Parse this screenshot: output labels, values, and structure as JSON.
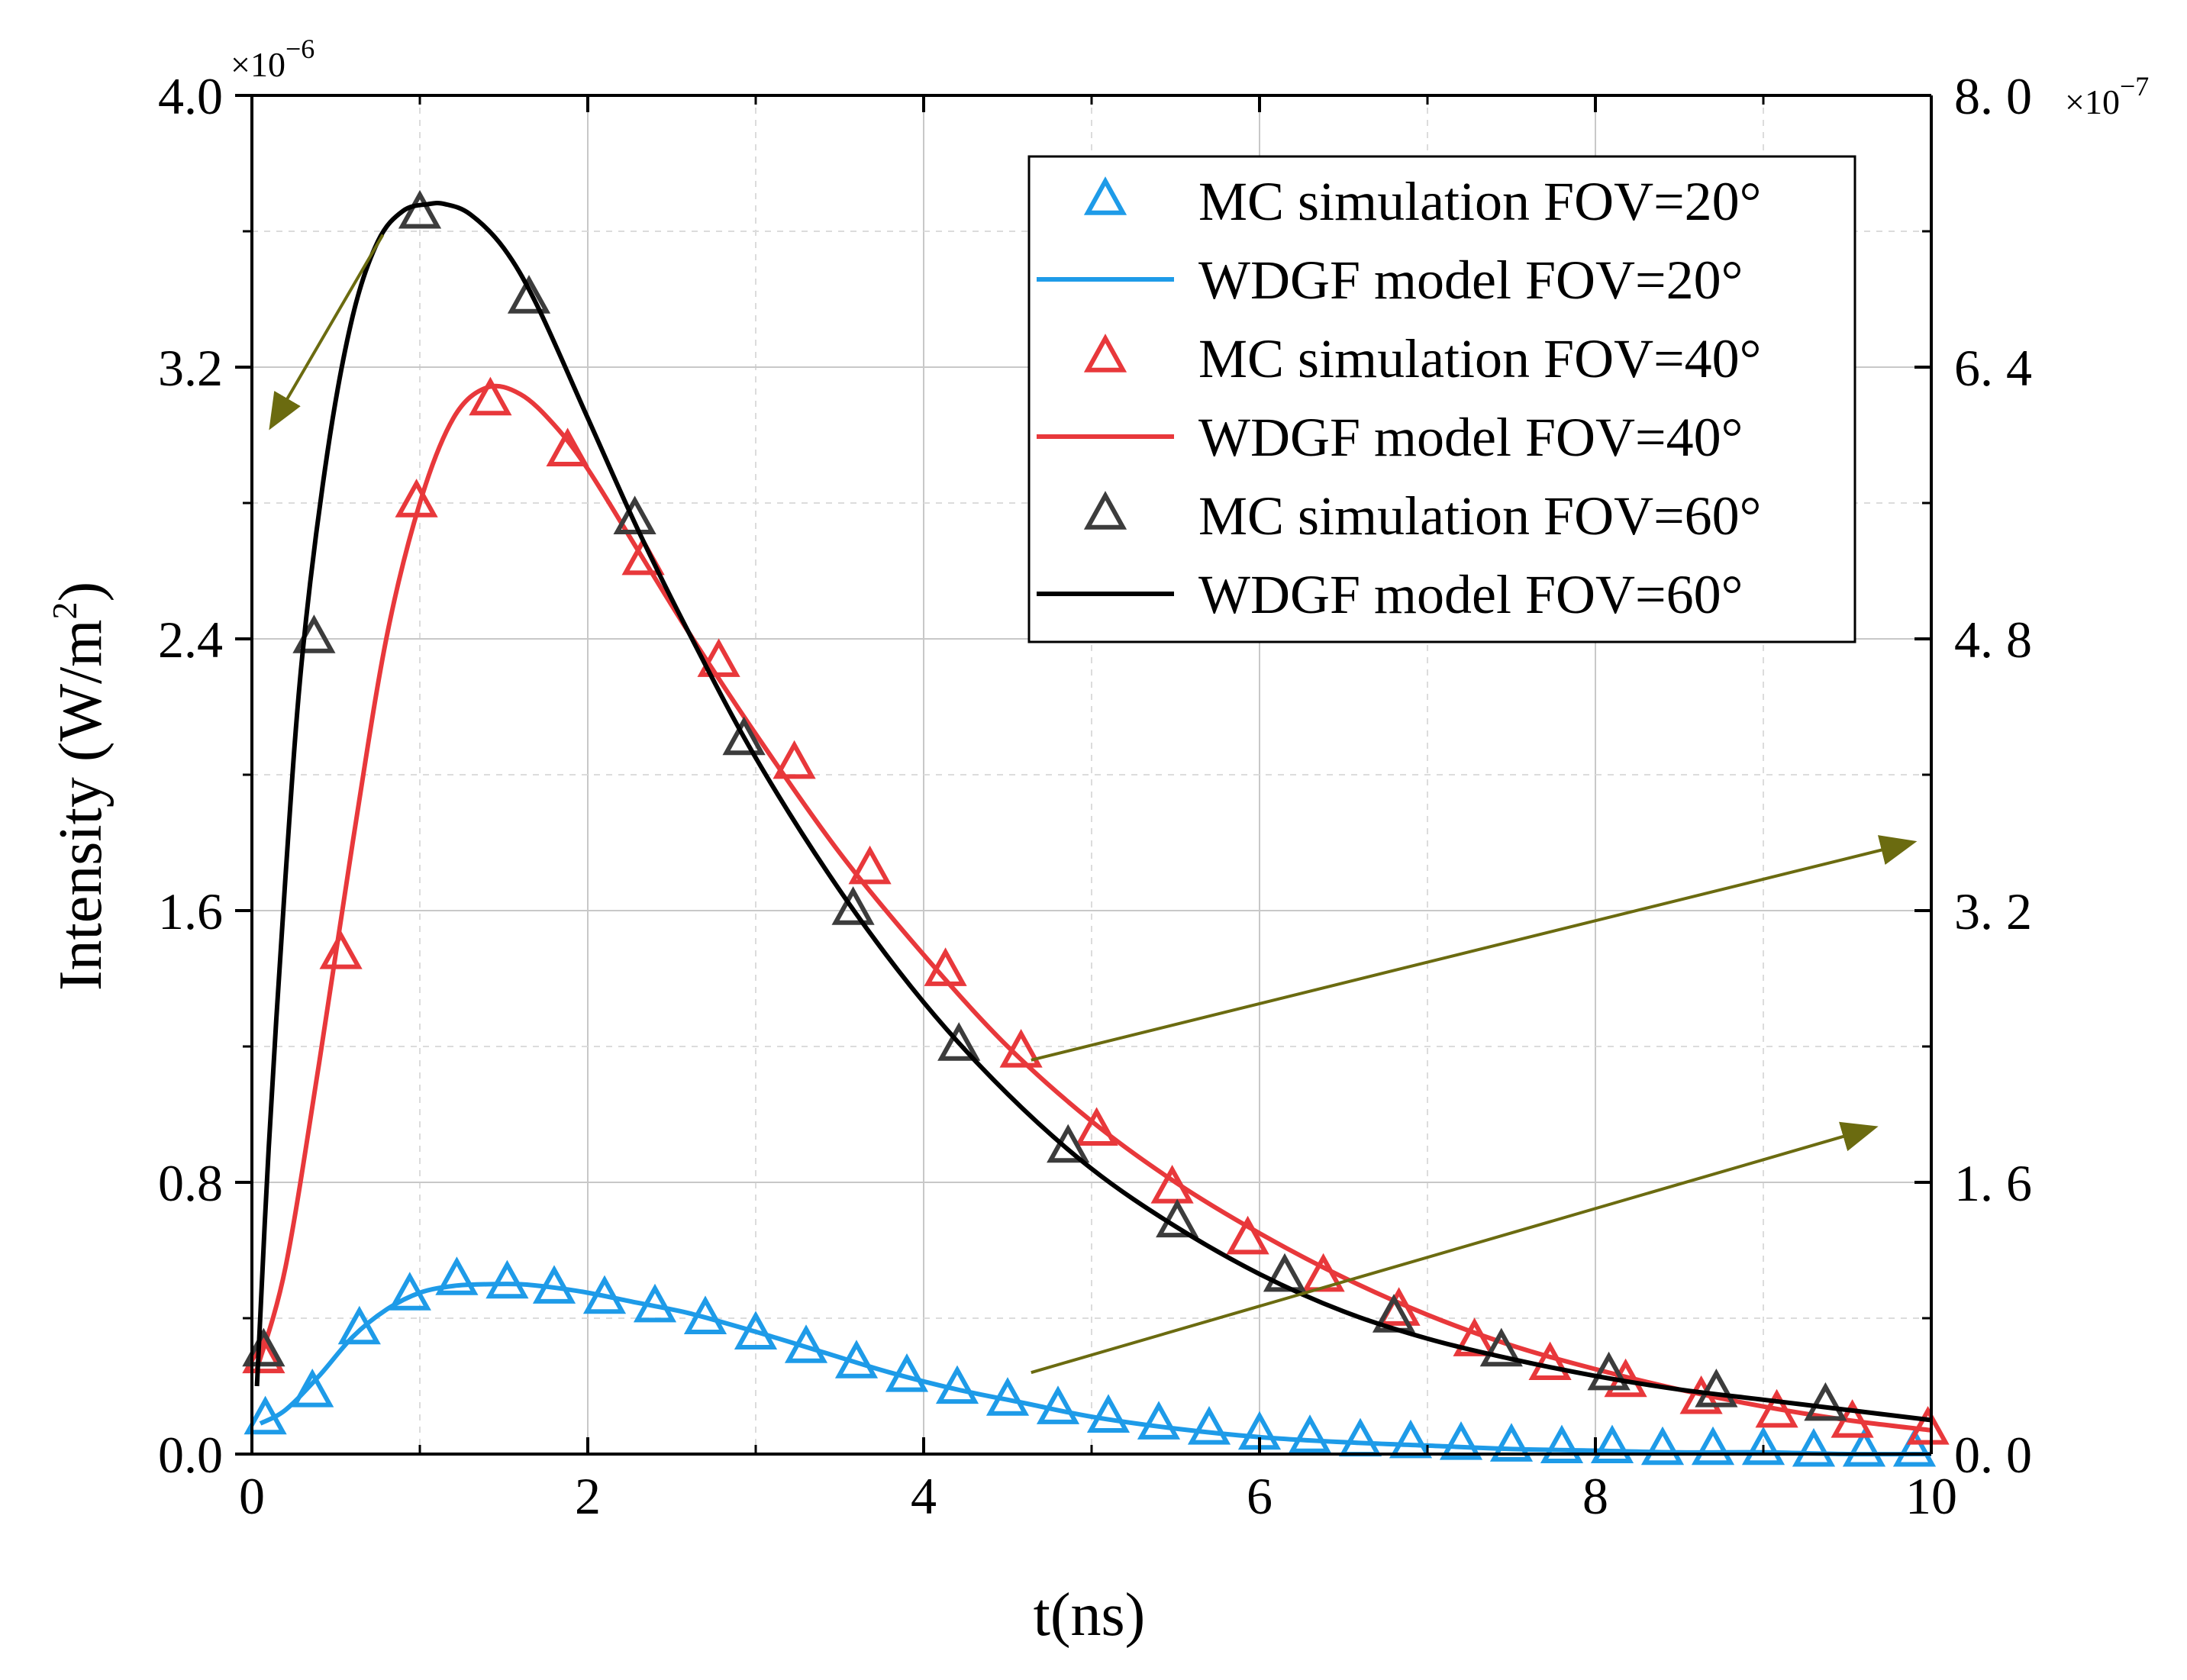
{
  "chart_data": {
    "type": "line",
    "xlabel": "t(ns)",
    "ylabel_left": "Intensity (W/m",
    "ylabel_left_sup": "2",
    "ylabel_left_close": ")",
    "xlim": [
      0,
      10
    ],
    "ylim_left": [
      0,
      4.0
    ],
    "ylim_right": [
      0,
      8.0
    ],
    "left_exponent": "×10",
    "left_exponent_power": "−6",
    "right_exponent": "×10",
    "right_exponent_power": "−7",
    "x_ticks": [
      "0",
      "2",
      "4",
      "6",
      "8",
      "10"
    ],
    "y_left_ticks": [
      "0.0",
      "0.8",
      "1.6",
      "2.4",
      "3.2",
      "4.0"
    ],
    "y_right_ticks": [
      "0. 0",
      "1. 6",
      "3. 2",
      "4. 8",
      "6. 4",
      "8. 0"
    ],
    "grid": true,
    "legend_position": "top-right",
    "series": [
      {
        "name": "MC simulation FOV=20°",
        "kind": "markers",
        "axis": "right",
        "color": "#1E9BE8",
        "x": [
          0.08,
          0.36,
          0.64,
          0.94,
          1.22,
          1.52,
          1.8,
          2.1,
          2.4,
          2.7,
          3.0,
          3.3,
          3.6,
          3.9,
          4.2,
          4.5,
          4.8,
          5.1,
          5.4,
          5.7,
          6.0,
          6.3,
          6.6,
          6.9,
          7.2,
          7.5,
          7.8,
          8.1,
          8.4,
          8.7,
          9.0,
          9.3,
          9.6,
          9.9
        ],
        "y": [
          0.2,
          0.36,
          0.73,
          0.93,
          1.02,
          1.0,
          0.97,
          0.91,
          0.86,
          0.79,
          0.7,
          0.62,
          0.53,
          0.45,
          0.38,
          0.31,
          0.26,
          0.21,
          0.17,
          0.14,
          0.11,
          0.09,
          0.07,
          0.06,
          0.05,
          0.04,
          0.03,
          0.03,
          0.02,
          0.02,
          0.02,
          0.01,
          0.01,
          0.01
        ]
      },
      {
        "name": "WDGF model FOV=20°",
        "kind": "line",
        "axis": "right",
        "color": "#1E9BE8",
        "x": [
          0.05,
          0.2,
          0.4,
          0.6,
          0.8,
          1.0,
          1.2,
          1.4,
          1.6,
          1.8,
          2.0,
          2.3,
          2.6,
          3.0,
          3.4,
          3.8,
          4.2,
          4.6,
          5.0,
          5.5,
          6.0,
          6.5,
          7.0,
          7.5,
          8.0,
          8.5,
          9.0,
          9.5,
          10.0
        ],
        "y": [
          0.18,
          0.26,
          0.46,
          0.69,
          0.85,
          0.95,
          0.99,
          1.0,
          1.0,
          0.98,
          0.95,
          0.89,
          0.83,
          0.72,
          0.6,
          0.48,
          0.38,
          0.3,
          0.22,
          0.15,
          0.1,
          0.07,
          0.05,
          0.03,
          0.02,
          0.01,
          0.01,
          0.0,
          0.0
        ]
      },
      {
        "name": "MC simulation FOV=40°",
        "kind": "markers",
        "axis": "left",
        "color": "#E8383B",
        "x": [
          0.07,
          0.53,
          0.98,
          1.42,
          1.88,
          2.33,
          2.78,
          3.23,
          3.68,
          4.13,
          4.58,
          5.03,
          5.48,
          5.93,
          6.38,
          6.83,
          7.28,
          7.73,
          8.18,
          8.63,
          9.08,
          9.53,
          9.98
        ],
        "y": [
          0.28,
          1.47,
          2.8,
          3.1,
          2.95,
          2.63,
          2.33,
          2.03,
          1.72,
          1.42,
          1.18,
          0.95,
          0.78,
          0.63,
          0.52,
          0.42,
          0.33,
          0.26,
          0.21,
          0.16,
          0.12,
          0.09,
          0.07
        ]
      },
      {
        "name": "WDGF model FOV=40°",
        "kind": "line",
        "axis": "left",
        "color": "#E8383B",
        "x": [
          0.03,
          0.2,
          0.4,
          0.6,
          0.8,
          1.0,
          1.2,
          1.4,
          1.6,
          1.8,
          2.0,
          2.3,
          2.6,
          3.0,
          3.5,
          4.0,
          4.5,
          5.0,
          5.5,
          6.0,
          6.5,
          7.0,
          7.5,
          8.0,
          8.5,
          9.0,
          9.5,
          10.0
        ],
        "y": [
          0.25,
          0.55,
          1.15,
          1.8,
          2.4,
          2.8,
          3.05,
          3.14,
          3.12,
          3.03,
          2.9,
          2.66,
          2.42,
          2.12,
          1.77,
          1.47,
          1.2,
          0.98,
          0.8,
          0.65,
          0.52,
          0.41,
          0.32,
          0.25,
          0.19,
          0.14,
          0.1,
          0.07
        ]
      },
      {
        "name": "MC simulation FOV=60°",
        "kind": "markers",
        "axis": "left",
        "color": "#3C3C3C",
        "x": [
          0.07,
          0.37,
          1.0,
          1.65,
          2.28,
          2.93,
          3.58,
          4.21,
          4.86,
          5.51,
          6.15,
          6.8,
          7.44,
          8.08,
          8.72,
          9.37
        ],
        "y": [
          0.3,
          2.4,
          3.65,
          3.4,
          2.75,
          2.1,
          1.6,
          1.2,
          0.9,
          0.68,
          0.52,
          0.4,
          0.3,
          0.23,
          0.18,
          0.14
        ]
      },
      {
        "name": "WDGF model FOV=60°",
        "kind": "line",
        "axis": "left",
        "color": "#000000",
        "x": [
          0.03,
          0.1,
          0.2,
          0.3,
          0.45,
          0.6,
          0.75,
          0.9,
          1.05,
          1.15,
          1.3,
          1.5,
          1.7,
          2.0,
          2.3,
          2.6,
          3.0,
          3.5,
          4.0,
          4.5,
          5.0,
          5.5,
          6.0,
          6.5,
          7.0,
          7.5,
          8.0,
          8.5,
          9.0,
          9.5,
          10.0
        ],
        "y": [
          0.2,
          0.9,
          1.7,
          2.35,
          2.95,
          3.35,
          3.57,
          3.66,
          3.68,
          3.68,
          3.65,
          3.55,
          3.38,
          3.05,
          2.72,
          2.42,
          2.05,
          1.66,
          1.33,
          1.06,
          0.84,
          0.67,
          0.53,
          0.42,
          0.34,
          0.28,
          0.23,
          0.19,
          0.16,
          0.13,
          0.1
        ]
      }
    ],
    "annotations": [
      {
        "type": "arrow",
        "from": [
          0.78,
          3.59
        ],
        "to": [
          0.12,
          3.03
        ],
        "axis": "left",
        "color": "#6B6B10",
        "meaning": "FOV=60° and FOV=40° curves use left axis"
      },
      {
        "type": "arrow",
        "from": [
          4.64,
          1.16
        ],
        "to": [
          9.88,
          1.8
        ],
        "axis": "left",
        "color": "#6B6B10",
        "meaning": "points to right axis"
      },
      {
        "type": "arrow",
        "from": [
          4.64,
          0.24
        ],
        "to": [
          9.65,
          0.96
        ],
        "axis": "left",
        "color": "#6B6B10",
        "meaning": "FOV=20° curve uses right axis"
      }
    ]
  }
}
